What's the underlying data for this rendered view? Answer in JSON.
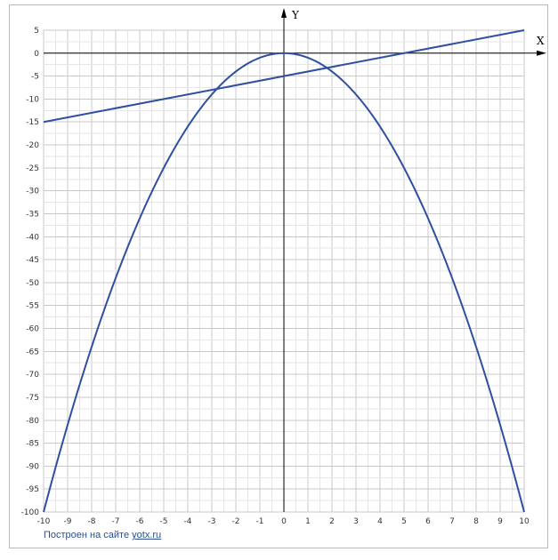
{
  "chart_data": {
    "type": "line",
    "x_axis_label": "X",
    "y_axis_label": "Y",
    "xlim": [
      -10,
      10
    ],
    "ylim": [
      -100,
      5
    ],
    "x_ticks": [
      -10,
      -9,
      -8,
      -7,
      -6,
      -5,
      -4,
      -3,
      -2,
      -1,
      0,
      1,
      2,
      3,
      4,
      5,
      6,
      7,
      8,
      9,
      10
    ],
    "y_ticks": [
      5,
      0,
      -5,
      -10,
      -15,
      -20,
      -25,
      -30,
      -35,
      -40,
      -45,
      -50,
      -55,
      -60,
      -65,
      -70,
      -75,
      -80,
      -85,
      -90,
      -95,
      -100
    ],
    "grid": true,
    "series": [
      {
        "color": "#2f4fa0",
        "x": [
          -10,
          -9,
          -8,
          -7,
          -6,
          -5,
          -4,
          -3,
          -2,
          -1,
          0,
          1,
          2,
          3,
          4,
          5,
          6,
          7,
          8,
          9,
          10
        ],
        "y": [
          -100,
          -81,
          -64,
          -49,
          -36,
          -25,
          -16,
          -9,
          -4,
          -1,
          0,
          -1,
          -4,
          -9,
          -16,
          -25,
          -36,
          -49,
          -64,
          -81,
          -100
        ]
      },
      {
        "color": "#2f4fa0",
        "x": [
          -10,
          10
        ],
        "y": [
          -15,
          5
        ]
      }
    ]
  },
  "credit": {
    "text": "Построен на сайте",
    "link": "yotx.ru"
  }
}
